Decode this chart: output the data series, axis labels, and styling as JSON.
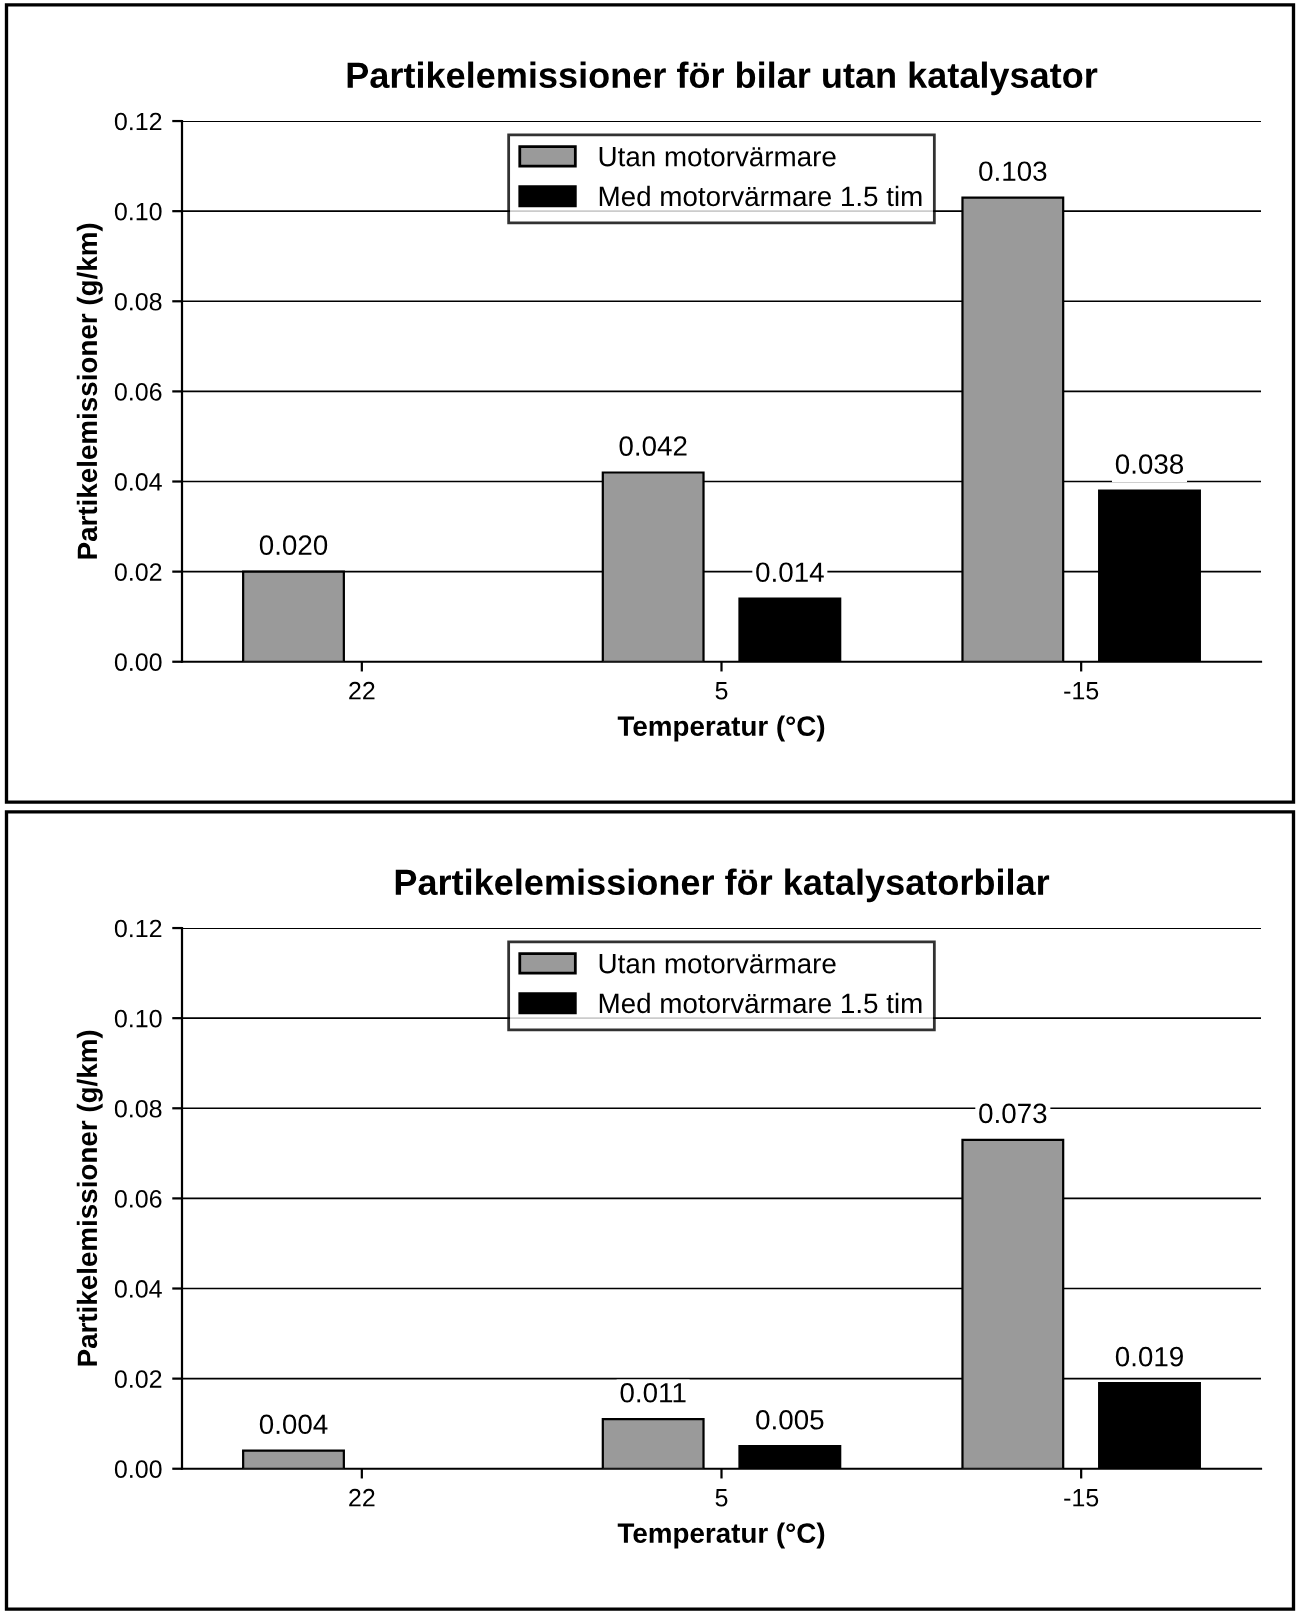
{
  "chart_data": [
    {
      "type": "bar",
      "title": "Partikelemissioner för bilar utan katalysator",
      "xlabel": "Temperatur (°C)",
      "ylabel": "Partikelemissioner (g/km)",
      "categories": [
        "22",
        "5",
        "-15"
      ],
      "series": [
        {
          "name": "Utan motorvärmare",
          "color": "#9a9a9a",
          "values": [
            0.02,
            0.042,
            0.103
          ],
          "value_labels": [
            "0.020",
            "0.042",
            "0.103"
          ]
        },
        {
          "name": "Med motorvärmare 1.5 tim",
          "color": "#000000",
          "values": [
            null,
            0.014,
            0.038
          ],
          "value_labels": [
            null,
            "0.014",
            "0.038"
          ]
        }
      ],
      "ylim": [
        0,
        0.12
      ],
      "yticks": [
        {
          "value": 0,
          "label": "0.00"
        },
        {
          "value": 0.02,
          "label": "0.02"
        },
        {
          "value": 0.04,
          "label": "0.04"
        },
        {
          "value": 0.06,
          "label": "0.06"
        },
        {
          "value": 0.08,
          "label": "0.08"
        },
        {
          "value": 0.1,
          "label": "0.10"
        },
        {
          "value": 0.12,
          "label": "0.12"
        }
      ],
      "grid": "y",
      "legend": "top"
    },
    {
      "type": "bar",
      "title": "Partikelemissioner för katalysatorbilar",
      "xlabel": "Temperatur (°C)",
      "ylabel": "Partikelemissioner (g/km)",
      "categories": [
        "22",
        "5",
        "-15"
      ],
      "series": [
        {
          "name": "Utan motorvärmare",
          "color": "#9a9a9a",
          "values": [
            0.004,
            0.011,
            0.073
          ],
          "value_labels": [
            "0.004",
            "0.011",
            "0.073"
          ]
        },
        {
          "name": "Med motorvärmare 1.5 tim",
          "color": "#000000",
          "values": [
            null,
            0.005,
            0.019
          ],
          "value_labels": [
            null,
            "0.005",
            "0.019"
          ]
        }
      ],
      "ylim": [
        0,
        0.12
      ],
      "yticks": [
        {
          "value": 0,
          "label": "0.00"
        },
        {
          "value": 0.02,
          "label": "0.02"
        },
        {
          "value": 0.04,
          "label": "0.04"
        },
        {
          "value": 0.06,
          "label": "0.06"
        },
        {
          "value": 0.08,
          "label": "0.08"
        },
        {
          "value": 0.1,
          "label": "0.10"
        },
        {
          "value": 0.12,
          "label": "0.12"
        }
      ],
      "grid": "y",
      "legend": "top"
    }
  ]
}
